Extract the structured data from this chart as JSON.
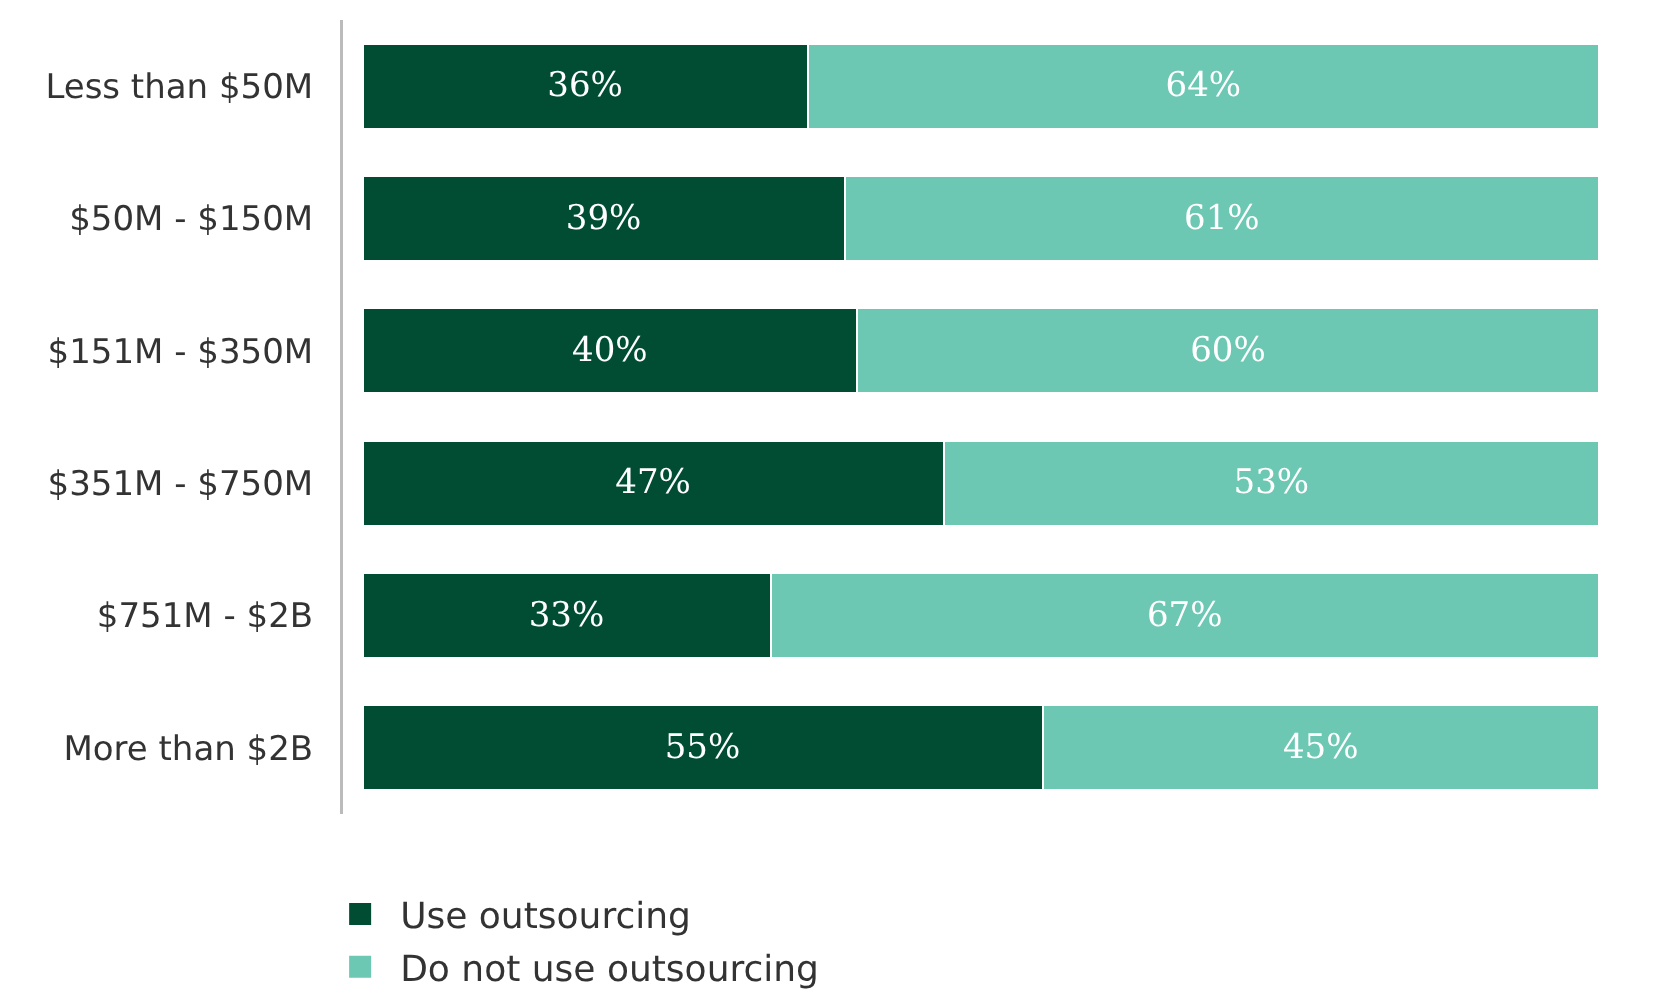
{
  "chart_data": {
    "type": "bar",
    "orientation": "horizontal",
    "stacked": true,
    "legend": "bottom left",
    "categories": [
      "Less than $50M",
      "$50M - $150M",
      "$151M - $350M",
      "$351M - $750M",
      "$751M - $2B",
      "More than $2B"
    ],
    "series": [
      {
        "name": "Use outsourcing",
        "color": "#004d34",
        "values": [
          36,
          39,
          40,
          47,
          33,
          55
        ],
        "value_labels": [
          "36%",
          "39%",
          "40%",
          "47%",
          "33%",
          "55%"
        ]
      },
      {
        "name": "Do not use outsourcing",
        "color": "#6cc7b3",
        "values": [
          64,
          61,
          60,
          53,
          67,
          45
        ],
        "value_labels": [
          "64%",
          "61%",
          "60%",
          "53%",
          "67%",
          "45%"
        ]
      }
    ]
  }
}
